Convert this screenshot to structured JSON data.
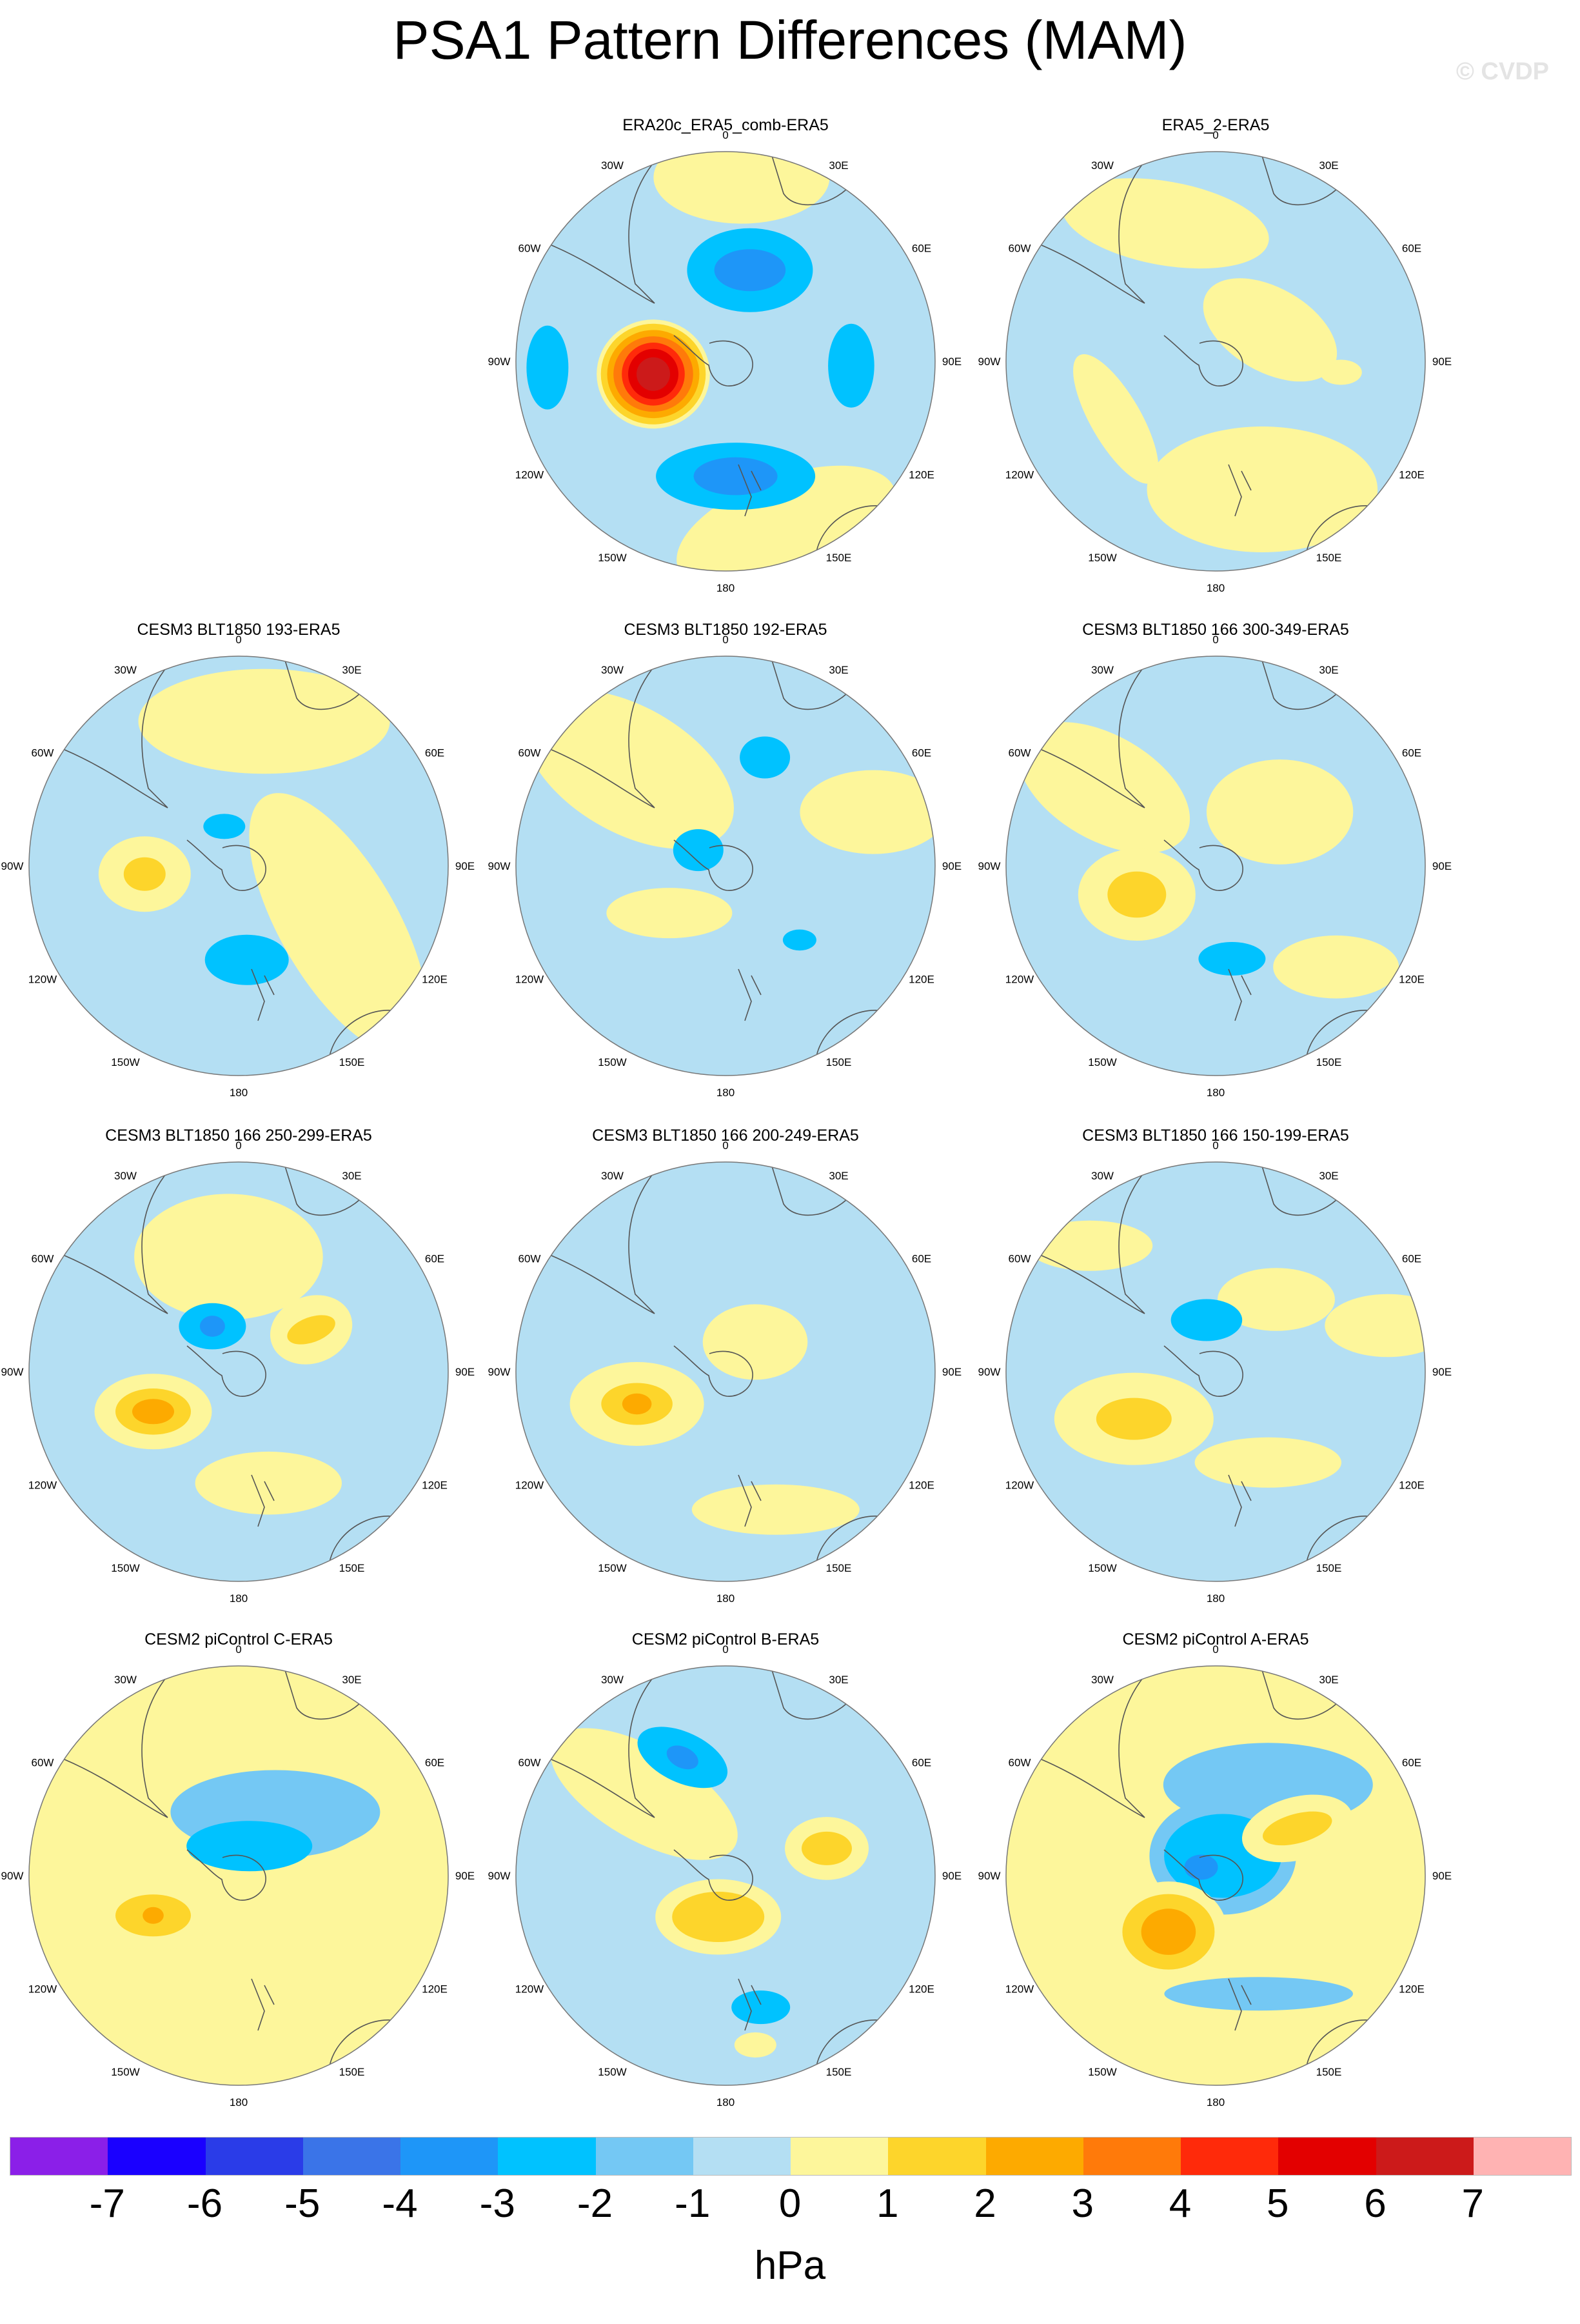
{
  "title": "PSA1 Pattern Differences (MAM)",
  "watermark": "© CVDP",
  "units": "hPa",
  "longitude_labels": [
    "0",
    "30E",
    "60E",
    "90E",
    "120E",
    "150E",
    "180",
    "150W",
    "120W",
    "90W",
    "60W",
    "30W"
  ],
  "colorbar": {
    "colors": [
      "#8b1fe8",
      "#1a00ff",
      "#2a3ce8",
      "#3a74e8",
      "#1e96f8",
      "#00c2ff",
      "#74c8f4",
      "#b4dff3",
      "#fdf69b",
      "#fdd52b",
      "#fdaa00",
      "#ff7a0a",
      "#ff2a0a",
      "#e30000",
      "#cc1a1a",
      "#ffb3b3"
    ],
    "tick_labels": [
      "-7",
      "-6",
      "-5",
      "-4",
      "-3",
      "-2",
      "-1",
      "0",
      "1",
      "2",
      "3",
      "4",
      "5",
      "6",
      "7"
    ]
  },
  "panels": [
    {
      "title": "ERA20c_ERA5_comb-ERA5",
      "background": "#b4dff3",
      "blobs": [
        {
          "lon": 5,
          "r": 0.88,
          "a": 0.42,
          "b": 0.22,
          "rot": 0,
          "level": 1
        },
        {
          "lon": 160,
          "r": 0.85,
          "a": 0.55,
          "b": 0.25,
          "rot": -20,
          "level": 1
        },
        {
          "lon": 15,
          "r": 0.45,
          "a": 0.3,
          "b": 0.2,
          "rot": 0,
          "level": -2
        },
        {
          "lon": 15,
          "r": 0.45,
          "a": 0.17,
          "b": 0.1,
          "rot": 0,
          "level": -3
        },
        {
          "lon": 175,
          "r": 0.55,
          "a": 0.38,
          "b": 0.16,
          "rot": 0,
          "level": -2
        },
        {
          "lon": 175,
          "r": 0.55,
          "a": 0.2,
          "b": 0.09,
          "rot": 0,
          "level": -3
        },
        {
          "lon": 92,
          "r": 0.6,
          "a": 0.2,
          "b": 0.11,
          "rot": 90,
          "level": -2
        },
        {
          "lon": -92,
          "r": 0.85,
          "a": 0.2,
          "b": 0.1,
          "rot": 90,
          "level": -2
        },
        {
          "lon": -100,
          "r": 0.35,
          "a": 0.27,
          "b": 0.26,
          "rot": 0,
          "level": 1
        },
        {
          "lon": -100,
          "r": 0.35,
          "a": 0.25,
          "b": 0.24,
          "rot": 0,
          "level": 2
        },
        {
          "lon": -100,
          "r": 0.35,
          "a": 0.22,
          "b": 0.21,
          "rot": 0,
          "level": 3
        },
        {
          "lon": -100,
          "r": 0.35,
          "a": 0.19,
          "b": 0.18,
          "rot": 0,
          "level": 4
        },
        {
          "lon": -100,
          "r": 0.35,
          "a": 0.15,
          "b": 0.15,
          "rot": 0,
          "level": 5
        },
        {
          "lon": -100,
          "r": 0.35,
          "a": 0.12,
          "b": 0.12,
          "rot": 0,
          "level": 6
        },
        {
          "lon": -100,
          "r": 0.35,
          "a": 0.08,
          "b": 0.08,
          "rot": 0,
          "level": 7
        }
      ]
    },
    {
      "title": "ERA5_2-ERA5",
      "background": "#b4dff3",
      "blobs": [
        {
          "lon": -20,
          "r": 0.7,
          "a": 0.5,
          "b": 0.2,
          "rot": 10,
          "level": 1
        },
        {
          "lon": 160,
          "r": 0.65,
          "a": 0.55,
          "b": 0.3,
          "rot": 0,
          "level": 1
        },
        {
          "lon": 60,
          "r": 0.3,
          "a": 0.35,
          "b": 0.2,
          "rot": 30,
          "level": 1
        },
        {
          "lon": -120,
          "r": 0.55,
          "a": 0.35,
          "b": 0.12,
          "rot": 60,
          "level": 1
        },
        {
          "lon": 95,
          "r": 0.6,
          "a": 0.1,
          "b": 0.06,
          "rot": 0,
          "level": 1
        }
      ]
    },
    {
      "title": "CESM3 BLT1850 193-ERA5",
      "background": "#b4dff3",
      "blobs": [
        {
          "lon": 10,
          "r": 0.7,
          "a": 0.6,
          "b": 0.25,
          "rot": 0,
          "level": 1
        },
        {
          "lon": 120,
          "r": 0.55,
          "a": 0.7,
          "b": 0.28,
          "rot": 60,
          "level": 1
        },
        {
          "lon": -95,
          "r": 0.45,
          "a": 0.22,
          "b": 0.18,
          "rot": 0,
          "level": 1
        },
        {
          "lon": -95,
          "r": 0.45,
          "a": 0.1,
          "b": 0.08,
          "rot": 0,
          "level": 2
        },
        {
          "lon": 175,
          "r": 0.45,
          "a": 0.2,
          "b": 0.12,
          "rot": 0,
          "level": -2
        },
        {
          "lon": -20,
          "r": 0.2,
          "a": 0.1,
          "b": 0.06,
          "rot": 0,
          "level": -2
        }
      ]
    },
    {
      "title": "CESM3 BLT1850 192-ERA5",
      "background": "#b4dff3",
      "blobs": [
        {
          "lon": -45,
          "r": 0.65,
          "a": 0.55,
          "b": 0.3,
          "rot": 30,
          "level": 1
        },
        {
          "lon": 70,
          "r": 0.75,
          "a": 0.35,
          "b": 0.2,
          "rot": 0,
          "level": 1
        },
        {
          "lon": -130,
          "r": 0.35,
          "a": 0.3,
          "b": 0.12,
          "rot": 0,
          "level": 1
        },
        {
          "lon": 20,
          "r": 0.55,
          "a": 0.12,
          "b": 0.1,
          "rot": 0,
          "level": -2
        },
        {
          "lon": -60,
          "r": 0.15,
          "a": 0.12,
          "b": 0.1,
          "rot": 0,
          "level": -2
        },
        {
          "lon": 135,
          "r": 0.5,
          "a": 0.08,
          "b": 0.05,
          "rot": 0,
          "level": -2
        }
      ]
    },
    {
      "title": "CESM3 BLT1850 166 300-349-ERA5",
      "background": "#b4dff3",
      "blobs": [
        {
          "lon": -55,
          "r": 0.65,
          "a": 0.45,
          "b": 0.25,
          "rot": 30,
          "level": 1
        },
        {
          "lon": -110,
          "r": 0.4,
          "a": 0.28,
          "b": 0.22,
          "rot": 0,
          "level": 1
        },
        {
          "lon": -110,
          "r": 0.4,
          "a": 0.14,
          "b": 0.11,
          "rot": 0,
          "level": 2
        },
        {
          "lon": 50,
          "r": 0.4,
          "a": 0.35,
          "b": 0.25,
          "rot": 0,
          "level": 1
        },
        {
          "lon": 130,
          "r": 0.75,
          "a": 0.3,
          "b": 0.15,
          "rot": 0,
          "level": 1
        },
        {
          "lon": 170,
          "r": 0.45,
          "a": 0.16,
          "b": 0.08,
          "rot": 0,
          "level": -2
        }
      ]
    },
    {
      "title": "CESM3 BLT1850 166 250-299-ERA5",
      "background": "#b4dff3",
      "blobs": [
        {
          "lon": -5,
          "r": 0.55,
          "a": 0.45,
          "b": 0.3,
          "rot": 0,
          "level": 1
        },
        {
          "lon": 60,
          "r": 0.4,
          "a": 0.2,
          "b": 0.16,
          "rot": -20,
          "level": 1
        },
        {
          "lon": 60,
          "r": 0.4,
          "a": 0.12,
          "b": 0.06,
          "rot": -20,
          "level": 2
        },
        {
          "lon": -115,
          "r": 0.45,
          "a": 0.28,
          "b": 0.18,
          "rot": 0,
          "level": 1
        },
        {
          "lon": -115,
          "r": 0.45,
          "a": 0.18,
          "b": 0.11,
          "rot": 0,
          "level": 2
        },
        {
          "lon": -115,
          "r": 0.45,
          "a": 0.1,
          "b": 0.06,
          "rot": 0,
          "level": 3
        },
        {
          "lon": 165,
          "r": 0.55,
          "a": 0.35,
          "b": 0.15,
          "rot": 0,
          "level": 1
        },
        {
          "lon": -30,
          "r": 0.25,
          "a": 0.16,
          "b": 0.11,
          "rot": 0,
          "level": -2
        },
        {
          "lon": -30,
          "r": 0.25,
          "a": 0.06,
          "b": 0.05,
          "rot": 0,
          "level": -3
        }
      ]
    },
    {
      "title": "CESM3 BLT1850 166 200-249-ERA5",
      "background": "#b4dff3",
      "blobs": [
        {
          "lon": -110,
          "r": 0.45,
          "a": 0.32,
          "b": 0.2,
          "rot": 0,
          "level": 1
        },
        {
          "lon": -110,
          "r": 0.45,
          "a": 0.17,
          "b": 0.1,
          "rot": 0,
          "level": 2
        },
        {
          "lon": -110,
          "r": 0.45,
          "a": 0.07,
          "b": 0.05,
          "rot": 0,
          "level": 3
        },
        {
          "lon": 45,
          "r": 0.2,
          "a": 0.25,
          "b": 0.18,
          "rot": 0,
          "level": 1
        },
        {
          "lon": 160,
          "r": 0.7,
          "a": 0.4,
          "b": 0.12,
          "rot": 0,
          "level": 1
        }
      ]
    },
    {
      "title": "CESM3 BLT1850 166 150-199-ERA5",
      "background": "#b4dff3",
      "blobs": [
        {
          "lon": -120,
          "r": 0.45,
          "a": 0.38,
          "b": 0.22,
          "rot": 0,
          "level": 1
        },
        {
          "lon": -120,
          "r": 0.45,
          "a": 0.18,
          "b": 0.1,
          "rot": 0,
          "level": 2
        },
        {
          "lon": 75,
          "r": 0.85,
          "a": 0.3,
          "b": 0.15,
          "rot": 0,
          "level": 1
        },
        {
          "lon": 40,
          "r": 0.45,
          "a": 0.28,
          "b": 0.15,
          "rot": 0,
          "level": 1
        },
        {
          "lon": -45,
          "r": 0.85,
          "a": 0.3,
          "b": 0.12,
          "rot": 0,
          "level": 1
        },
        {
          "lon": -10,
          "r": 0.25,
          "a": 0.17,
          "b": 0.1,
          "rot": 0,
          "level": -2
        },
        {
          "lon": 150,
          "r": 0.5,
          "a": 0.35,
          "b": 0.12,
          "rot": 0,
          "level": 1
        }
      ]
    },
    {
      "title": "CESM2 piControl C-ERA5",
      "background": "#fdf69b",
      "blobs": [
        {
          "lon": 30,
          "r": 0.35,
          "a": 0.5,
          "b": 0.2,
          "rot": 0,
          "level": -1
        },
        {
          "lon": 40,
          "r": 0.35,
          "a": 0.38,
          "b": 0.18,
          "rot": 0,
          "level": -1
        },
        {
          "lon": 20,
          "r": 0.15,
          "a": 0.3,
          "b": 0.12,
          "rot": 0,
          "level": -2
        },
        {
          "lon": -115,
          "r": 0.45,
          "a": 0.28,
          "b": 0.17,
          "rot": 0,
          "level": 1
        },
        {
          "lon": -115,
          "r": 0.45,
          "a": 0.18,
          "b": 0.1,
          "rot": 0,
          "level": 2
        },
        {
          "lon": -115,
          "r": 0.45,
          "a": 0.05,
          "b": 0.04,
          "rot": 0,
          "level": 3
        }
      ]
    },
    {
      "title": "CESM2 piControl B-ERA5",
      "background": "#b4dff3",
      "blobs": [
        {
          "lon": -45,
          "r": 0.55,
          "a": 0.5,
          "b": 0.22,
          "rot": 30,
          "level": 1
        },
        {
          "lon": 75,
          "r": 0.5,
          "a": 0.2,
          "b": 0.15,
          "rot": 0,
          "level": 1
        },
        {
          "lon": 75,
          "r": 0.5,
          "a": 0.12,
          "b": 0.08,
          "rot": 0,
          "level": 2
        },
        {
          "lon": -20,
          "r": 0.6,
          "a": 0.23,
          "b": 0.12,
          "rot": 25,
          "level": -2
        },
        {
          "lon": -20,
          "r": 0.6,
          "a": 0.08,
          "b": 0.05,
          "rot": 25,
          "level": -3
        },
        {
          "lon": -170,
          "r": 0.2,
          "a": 0.3,
          "b": 0.18,
          "rot": 0,
          "level": 1
        },
        {
          "lon": -170,
          "r": 0.2,
          "a": 0.22,
          "b": 0.12,
          "rot": 0,
          "level": 2
        },
        {
          "lon": 165,
          "r": 0.65,
          "a": 0.14,
          "b": 0.08,
          "rot": 0,
          "level": -2
        },
        {
          "lon": 170,
          "r": 0.82,
          "a": 0.1,
          "b": 0.06,
          "rot": 0,
          "level": 1
        }
      ]
    },
    {
      "title": "CESM2 piControl A-ERA5",
      "background": "#fdf69b",
      "blobs": [
        {
          "lon": 30,
          "r": 0.5,
          "a": 0.5,
          "b": 0.2,
          "rot": 0,
          "level": -1
        },
        {
          "lon": 20,
          "r": 0.1,
          "a": 0.35,
          "b": 0.28,
          "rot": 0,
          "level": -1
        },
        {
          "lon": 20,
          "r": 0.1,
          "a": 0.28,
          "b": 0.2,
          "rot": 0,
          "level": -2
        },
        {
          "lon": -60,
          "r": 0.08,
          "a": 0.08,
          "b": 0.06,
          "rot": 0,
          "level": -3
        },
        {
          "lon": 60,
          "r": 0.45,
          "a": 0.27,
          "b": 0.15,
          "rot": -15,
          "level": 1
        },
        {
          "lon": 60,
          "r": 0.45,
          "a": 0.17,
          "b": 0.07,
          "rot": -15,
          "level": 2
        },
        {
          "lon": -140,
          "r": 0.35,
          "a": 0.28,
          "b": 0.24,
          "rot": 0,
          "level": 1
        },
        {
          "lon": -140,
          "r": 0.35,
          "a": 0.22,
          "b": 0.18,
          "rot": 0,
          "level": 2
        },
        {
          "lon": -140,
          "r": 0.35,
          "a": 0.13,
          "b": 0.11,
          "rot": 0,
          "level": 3
        },
        {
          "lon": 160,
          "r": 0.6,
          "a": 0.45,
          "b": 0.08,
          "rot": 0,
          "level": -1
        }
      ]
    }
  ]
}
